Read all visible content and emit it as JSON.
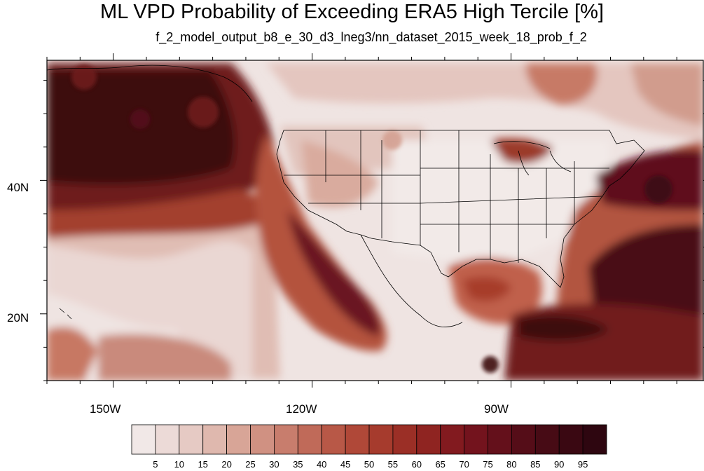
{
  "title": "ML VPD Probability of Exceeding ERA5 High Tercile [%]",
  "subtitle": "f_2_model_output_b8_e_30_d3_lneg3/nn_dataset_2015_week_18_prob_f_2",
  "map": {
    "projection": "cylindrical equidistant",
    "lon_range": [
      -160,
      -61
    ],
    "lat_range": [
      10,
      58
    ],
    "lat_labels": [
      "40N",
      "20N"
    ],
    "lon_labels": [
      "150W",
      "120W",
      "90W"
    ]
  },
  "colorbar": {
    "levels": [
      "5",
      "10",
      "15",
      "20",
      "25",
      "30",
      "35",
      "40",
      "45",
      "50",
      "55",
      "60",
      "65",
      "70",
      "75",
      "80",
      "85",
      "90",
      "95"
    ],
    "colors": [
      "#f1e8e7",
      "#ecdad7",
      "#e6cac4",
      "#dfb8ae",
      "#d8a597",
      "#d09182",
      "#c87d6d",
      "#c06a59",
      "#b85847",
      "#b04838",
      "#a63b2d",
      "#9b2f26",
      "#8f2421",
      "#821a1f",
      "#73131d",
      "#64101b",
      "#550d18",
      "#470b15",
      "#3a0812",
      "#2e0610"
    ]
  },
  "colors": {
    "background": "#ffffff",
    "low": "#f1e8e7",
    "high": "#3a0812",
    "boundaries": "#000000"
  }
}
